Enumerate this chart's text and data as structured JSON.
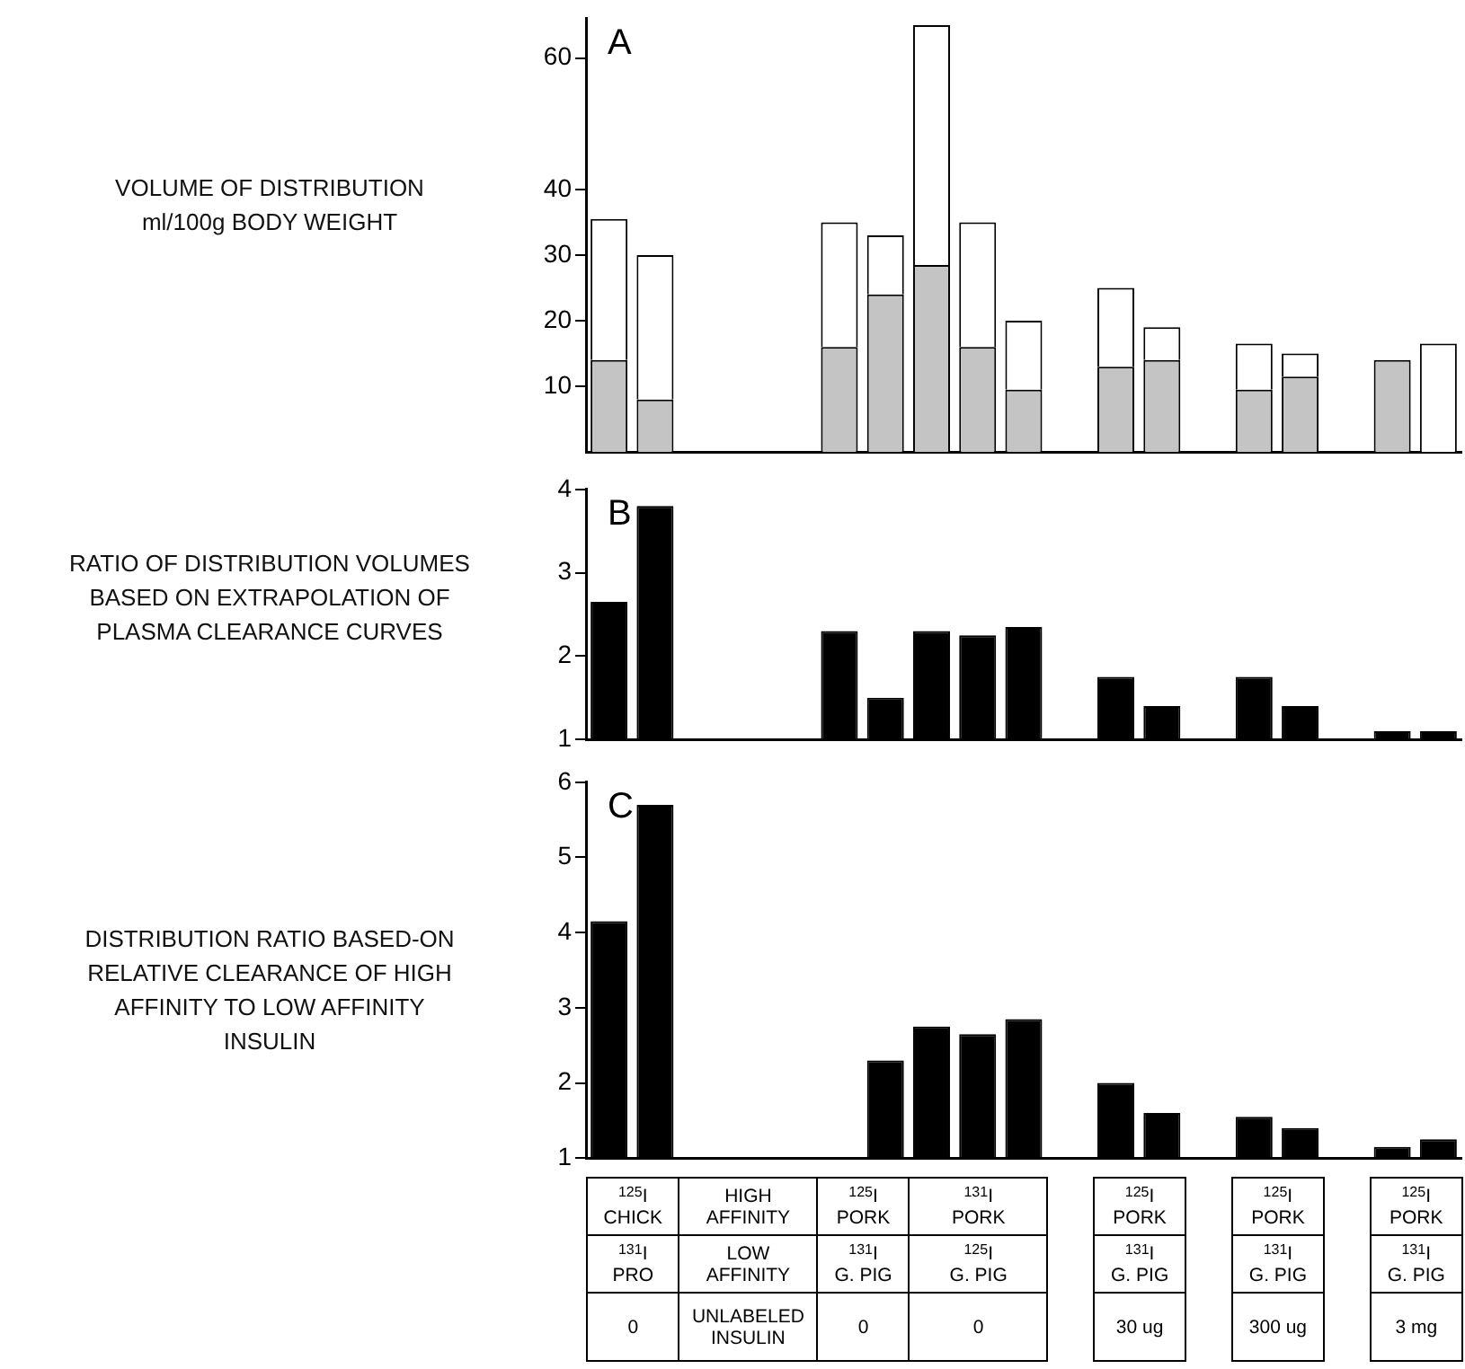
{
  "chart_data": [
    {
      "type": "bar",
      "title": "A",
      "ylabel": "VOLUME OF DISTRIBUTION\nml/100g BODY WEIGHT",
      "stacked": true,
      "categories": [
        null,
        null,
        null,
        null,
        null,
        null,
        null,
        null,
        null,
        null,
        null,
        null,
        null,
        null,
        null,
        null,
        null,
        null,
        null
      ],
      "series": [
        {
          "color": "#c4c4c4",
          "values": [
            14,
            8,
            null,
            null,
            null,
            16,
            24,
            28.5,
            16,
            9.5,
            null,
            13,
            14,
            null,
            9.5,
            11.5,
            null,
            14,
            0
          ]
        },
        {
          "color": "#ffffff",
          "values": [
            21.5,
            22,
            null,
            null,
            null,
            19,
            9,
            36.5,
            19,
            10.5,
            null,
            12,
            5,
            null,
            7,
            3.5,
            null,
            0,
            16.5
          ]
        }
      ],
      "ylim": [
        0,
        66
      ],
      "yticks": [
        10,
        20,
        30,
        40,
        60
      ],
      "grid": false,
      "tick_labels": "y"
    },
    {
      "type": "bar",
      "title": "B",
      "ylabel": "RATIO OF DISTRIBUTION VOLUMES\nBASED ON EXTRAPOLATION OF\nPLASMA CLEARANCE CURVES",
      "categories": [
        null,
        null,
        null,
        null,
        null,
        null,
        null,
        null,
        null,
        null,
        null,
        null,
        null,
        null,
        null,
        null,
        null,
        null,
        null
      ],
      "series": [
        {
          "color": "#000000",
          "values": [
            2.65,
            3.8,
            null,
            null,
            null,
            2.3,
            1.5,
            2.3,
            2.25,
            2.35,
            null,
            1.75,
            1.4,
            null,
            1.75,
            1.4,
            null,
            1.1,
            1.1
          ]
        }
      ],
      "ylim": [
        1,
        4
      ],
      "yticks": [
        1,
        2,
        3,
        4
      ],
      "grid": false,
      "tick_labels": "y"
    },
    {
      "type": "bar",
      "title": "C",
      "ylabel": "DISTRIBUTION RATIO BASED-ON\nRELATIVE CLEARANCE OF HIGH\nAFFINITY TO LOW AFFINITY\nINSULIN",
      "categories": [
        null,
        null,
        null,
        null,
        null,
        null,
        null,
        null,
        null,
        null,
        null,
        null,
        null,
        null,
        null,
        null,
        null,
        null,
        null
      ],
      "series": [
        {
          "color": "#000000",
          "values": [
            4.15,
            5.7,
            null,
            null,
            null,
            null,
            2.3,
            2.75,
            2.65,
            2.85,
            null,
            2.0,
            1.6,
            null,
            1.55,
            1.4,
            null,
            1.15,
            1.25
          ]
        }
      ],
      "ylim": [
        1,
        6
      ],
      "yticks": [
        1,
        2,
        3,
        4,
        5,
        6
      ],
      "grid": false,
      "tick_labels": "y",
      "annotations": [
        "$^{125}$I\nCHICK",
        "$^{131}$I\nPRO",
        "0",
        "HIGH\nAFFINITY",
        "LOW\nAFFINITY",
        "UNLABELED\nINSULIN",
        "$^{125}$I\nPORK",
        "$^{131}$I\nG. PIG",
        "0",
        "$^{131}$I\nPORK",
        "$^{125}$I\nG. PIG",
        "0",
        "$^{125}$I\nPORK",
        "$^{131}$I\nG. PIG",
        "30 ug",
        "$^{125}$I\nPORK",
        "$^{131}$I\nG. PIG",
        "300 ug",
        "$^{125}$I\nPORK",
        "$^{131}$I\nG. PIG",
        "3 mg"
      ]
    }
  ]
}
